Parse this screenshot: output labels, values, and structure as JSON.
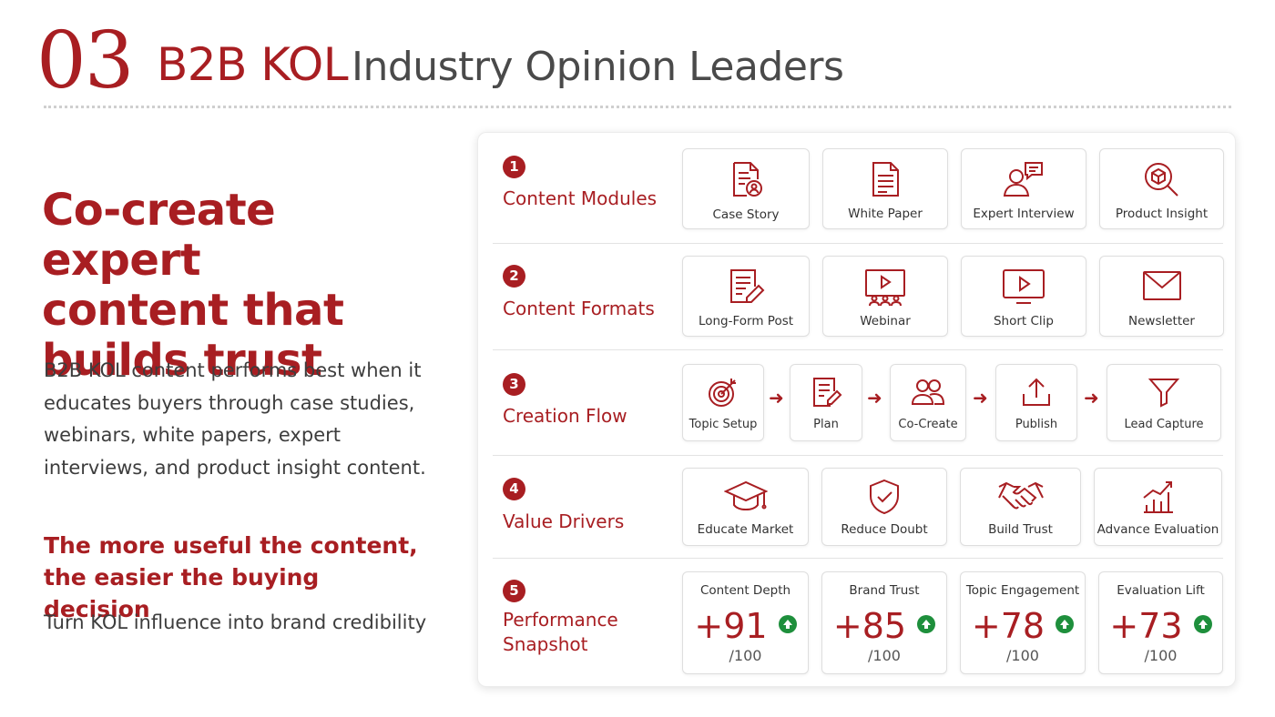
{
  "header": {
    "number": "03",
    "kol": "B2B KOL",
    "subtitle": "Industry Opinion Leaders"
  },
  "left": {
    "lead": [
      "Co-create expert",
      "content that",
      "builds trust"
    ],
    "body": "B2B KOL content performs best when it educates buyers through case studies, webinars, white papers, expert interviews, and product insight content.",
    "sub_head": [
      "The more useful the content,",
      "the easier the buying decision"
    ],
    "tagline": "Turn KOL influence into brand credibility"
  },
  "colors": {
    "accent": "#a81e22",
    "positive": "#1e8f3c"
  },
  "rows": [
    {
      "num": "1",
      "title": "Content Modules",
      "items": [
        {
          "label": "Case Story",
          "icon": "case-story-icon"
        },
        {
          "label": "White Paper",
          "icon": "white-paper-icon"
        },
        {
          "label": "Expert Interview",
          "icon": "expert-interview-icon"
        },
        {
          "label": "Product Insight",
          "icon": "product-insight-icon"
        }
      ]
    },
    {
      "num": "2",
      "title": "Content Formats",
      "items": [
        {
          "label": "Long-Form Post",
          "icon": "long-form-post-icon"
        },
        {
          "label": "Webinar",
          "icon": "webinar-icon"
        },
        {
          "label": "Short Clip",
          "icon": "short-clip-icon"
        },
        {
          "label": "Newsletter",
          "icon": "newsletter-icon"
        }
      ]
    },
    {
      "num": "3",
      "title": "Creation Flow",
      "items": [
        {
          "label": "Topic Setup",
          "icon": "target-icon"
        },
        {
          "label": "Plan",
          "icon": "plan-icon"
        },
        {
          "label": "Co-Create",
          "icon": "people-icon"
        },
        {
          "label": "Publish",
          "icon": "upload-icon"
        },
        {
          "label": "Lead Capture",
          "icon": "funnel-icon"
        }
      ]
    },
    {
      "num": "4",
      "title": "Value Drivers",
      "items": [
        {
          "label": "Educate Market",
          "icon": "graduation-cap-icon"
        },
        {
          "label": "Reduce Doubt",
          "icon": "shield-check-icon"
        },
        {
          "label": "Build Trust",
          "icon": "handshake-icon"
        },
        {
          "label": "Advance Evaluation",
          "icon": "growth-chart-icon"
        }
      ]
    },
    {
      "num": "5",
      "title": "Performance Snapshot",
      "metrics": [
        {
          "title": "Content Depth",
          "value": "+91",
          "denom": "/100",
          "score": 91
        },
        {
          "title": "Brand Trust",
          "value": "+85",
          "denom": "/100",
          "score": 85
        },
        {
          "title": "Topic Engagement",
          "value": "+78",
          "denom": "/100",
          "score": 78
        },
        {
          "title": "Evaluation Lift",
          "value": "+73",
          "denom": "/100",
          "score": 73
        }
      ]
    }
  ]
}
